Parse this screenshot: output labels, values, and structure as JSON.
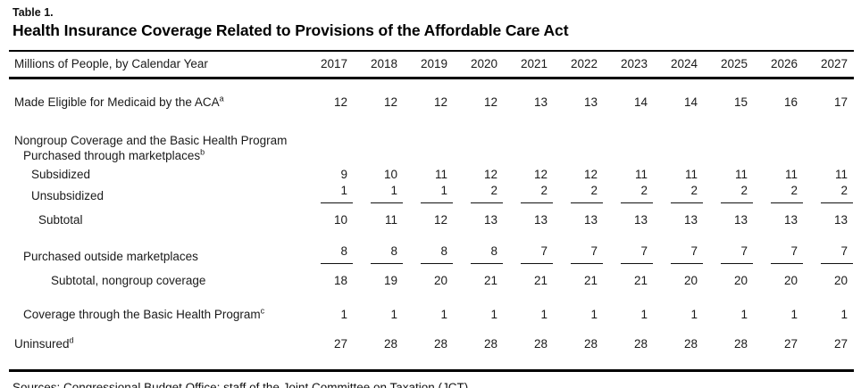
{
  "page": {
    "table_label": "Table 1.",
    "title": "Health Insurance Coverage Related to Provisions of the Affordable Care Act",
    "sources": "Sources: Congressional Budget Office; staff of the Joint Committee on Taxation (JCT)."
  },
  "table": {
    "header_label": "Millions of People, by Calendar Year",
    "years": [
      "2017",
      "2018",
      "2019",
      "2020",
      "2021",
      "2022",
      "2023",
      "2024",
      "2025",
      "2026",
      "2027"
    ],
    "rows": [
      {
        "label": "Made Eligible for Medicaid by the ACA",
        "footnote": "a",
        "indent": 0,
        "values": [
          12,
          12,
          12,
          12,
          13,
          13,
          14,
          14,
          15,
          16,
          17
        ]
      },
      {
        "label": "Nongroup Coverage and the Basic Health Program",
        "indent": 0,
        "values": null
      },
      {
        "label": "Purchased through marketplaces",
        "footnote": "b",
        "indent": 1,
        "values": null
      },
      {
        "label": "Subsidized",
        "indent": 2,
        "values": [
          9,
          10,
          11,
          12,
          12,
          12,
          11,
          11,
          11,
          11,
          11
        ]
      },
      {
        "label": "Unsubsidized",
        "indent": 2,
        "rule_below": true,
        "values": [
          1,
          1,
          1,
          2,
          2,
          2,
          2,
          2,
          2,
          2,
          2
        ]
      },
      {
        "label": "Subtotal",
        "indent": 3,
        "values": [
          10,
          11,
          12,
          13,
          13,
          13,
          13,
          13,
          13,
          13,
          13
        ]
      },
      {
        "label": "Purchased outside marketplaces",
        "indent": 1,
        "rule_below": true,
        "values": [
          8,
          8,
          8,
          8,
          7,
          7,
          7,
          7,
          7,
          7,
          7
        ]
      },
      {
        "label": "Subtotal, nongroup coverage",
        "indent": 4,
        "values": [
          18,
          19,
          20,
          21,
          21,
          21,
          21,
          20,
          20,
          20,
          20
        ]
      },
      {
        "label": "Coverage through the Basic Health Program",
        "footnote": "c",
        "indent": 1,
        "values": [
          1,
          1,
          1,
          1,
          1,
          1,
          1,
          1,
          1,
          1,
          1
        ]
      },
      {
        "label": "Uninsured",
        "footnote": "d",
        "indent": 0,
        "values": [
          27,
          28,
          28,
          28,
          28,
          28,
          28,
          28,
          28,
          27,
          27
        ]
      }
    ]
  }
}
